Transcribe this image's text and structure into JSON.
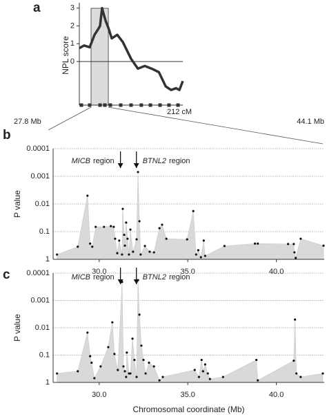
{
  "chart_data": [
    {
      "type": "line",
      "panel": "a",
      "y_label": "NPL score",
      "x_end_label": "212 cM",
      "color": "#333333",
      "x": [
        0,
        9.9,
        21.2,
        31.1,
        38.2,
        42.4,
        46.6,
        49.5,
        53.7,
        59.4,
        66.4,
        77.7,
        89,
        106,
        120,
        134,
        148,
        163,
        177,
        188,
        198,
        205,
        212
      ],
      "values": [
        0.75,
        0.9,
        0.8,
        1.5,
        1.8,
        2.0,
        3.0,
        2.7,
        2.3,
        1.9,
        1.3,
        1.5,
        1.1,
        0.15,
        -0.4,
        -0.25,
        -0.4,
        -0.6,
        -1.4,
        -1.6,
        -1.5,
        -1.6,
        -1.1
      ],
      "xlim": [
        0,
        212
      ],
      "ylim": [
        -2.45,
        3.3
      ],
      "yticks": [
        0,
        1,
        2,
        3
      ],
      "highlight": [
        24,
        59.4
      ],
      "markers": [
        4.2,
        21.2,
        42.4,
        52.3,
        63.6,
        84.8,
        106,
        127,
        145.6,
        165.4,
        183.7,
        202.1
      ],
      "zoom_labels": [
        "27.8 Mb",
        "44.1 Mb"
      ]
    },
    {
      "type": "area",
      "panel": "b",
      "y_label": "P value",
      "log_scale": true,
      "grid": true,
      "color": "#d9d9d9",
      "x": [
        27.62,
        28.79,
        29.34,
        29.49,
        29.61,
        29.8,
        30.27,
        30.66,
        30.82,
        30.9,
        31.02,
        31.13,
        31.29,
        31.33,
        31.41,
        31.45,
        31.52,
        31.6,
        31.68,
        31.76,
        31.91,
        32.11,
        32.19,
        32.27,
        32.34,
        32.58,
        32.85,
        33.09,
        33.4,
        33.55,
        33.79,
        34.96,
        35.31,
        35.47,
        35.59,
        35.74,
        35.9,
        35.98,
        37.07,
        38.79,
        38.95,
        40.66,
        40.98,
        41.02,
        41.09,
        41.37,
        42.66
      ],
      "values": [
        0.67,
        0.35,
        0.005,
        0.27,
        0.35,
        0.067,
        0.067,
        0.063,
        0.067,
        0.18,
        0.6,
        0.21,
        0.67,
        0.015,
        0.13,
        0.32,
        0.047,
        0.18,
        0.67,
        0.084,
        0.53,
        0.19,
        0.0007,
        0.042,
        0.67,
        0.33,
        0.53,
        0.56,
        0.075,
        0.056,
        0.18,
        0.19,
        0.018,
        0.67,
        0.47,
        0.84,
        0.21,
        0.75,
        0.33,
        0.27,
        0.27,
        0.28,
        0.28,
        0.56,
        0.89,
        0.18,
        0.32
      ],
      "xlim": [
        27.4,
        42.7
      ],
      "xticks": [
        {
          "value": 30,
          "label": "30.0"
        },
        {
          "value": 35,
          "label": "35.0"
        },
        {
          "value": 40,
          "label": "40.0"
        }
      ],
      "ylim": [
        1,
        0.0001
      ],
      "yticks": [
        0.0001,
        0.001,
        0.01,
        0.1,
        1
      ],
      "annotations": [
        {
          "x": 31.2,
          "gene": "MICB",
          "text": "region"
        },
        {
          "x": 32.1,
          "gene": "BTNL2",
          "text": "region"
        }
      ]
    },
    {
      "type": "area",
      "panel": "c",
      "y_label": "P value",
      "x_label": "Chromosomal coordinate (Mb)",
      "log_scale": true,
      "grid": true,
      "color": "#d9d9d9",
      "x": [
        27.62,
        28.79,
        29.34,
        29.49,
        29.57,
        29.73,
        30.08,
        30.51,
        30.74,
        30.86,
        31.05,
        31.29,
        31.37,
        31.45,
        31.52,
        31.56,
        31.68,
        31.76,
        31.88,
        31.99,
        32.11,
        32.19,
        32.27,
        32.38,
        32.5,
        32.62,
        32.81,
        33.09,
        33.4,
        33.59,
        35.39,
        35.63,
        35.78,
        35.86,
        35.98,
        36.13,
        36.25,
        36.99,
        38.87,
        38.95,
        40.98,
        41.05,
        41.13,
        41.37,
        42.62
      ],
      "values": [
        0.47,
        0.39,
        0.015,
        0.11,
        0.19,
        0.7,
        0.26,
        0.051,
        0.0063,
        0.091,
        0.35,
        0.00021,
        0.26,
        0.39,
        0.63,
        0.081,
        0.47,
        0.47,
        0.025,
        0.15,
        0.63,
        0.00018,
        0.0033,
        0.045,
        0.15,
        0.47,
        0.19,
        0.26,
        0.84,
        0.63,
        0.35,
        0.63,
        0.15,
        0.39,
        0.22,
        0.47,
        0.75,
        0.63,
        0.15,
        0.84,
        0.16,
        0.005,
        0.47,
        0.63,
        0.47
      ],
      "xlim": [
        27.4,
        42.7
      ],
      "xticks": [
        {
          "value": 30,
          "label": "30.0"
        },
        {
          "value": 35,
          "label": "35.0"
        },
        {
          "value": 40,
          "label": "40.0"
        }
      ],
      "ylim": [
        1,
        0.0001
      ],
      "yticks": [
        0.0001,
        0.001,
        0.01,
        0.1,
        1
      ],
      "annotations": [
        {
          "x": 31.2,
          "gene": "MICB",
          "text": "region"
        },
        {
          "x": 32.1,
          "gene": "BTNL2",
          "text": "region"
        }
      ]
    }
  ]
}
